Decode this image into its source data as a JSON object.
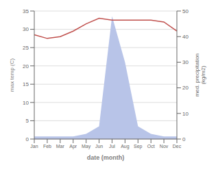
{
  "chart_data": {
    "type": "line",
    "xlabel": "date (month)",
    "ylabel": "max temp (C)",
    "y2label": "med. precipitation\n(kg/m2)",
    "categories": [
      "Jan",
      "Feb",
      "Mar",
      "Apr",
      "May",
      "Jun",
      "Jul",
      "Aug",
      "Sep",
      "Oct",
      "Nov",
      "Dec"
    ],
    "series": [
      {
        "type": "area",
        "axis": "y2",
        "color": "#b8c4e8",
        "values": [
          1,
          1,
          1,
          1,
          2,
          5,
          48,
          30,
          5,
          2,
          1,
          1
        ]
      },
      {
        "type": "line",
        "color": "#c0504d",
        "values": [
          28.5,
          27.5,
          28.0,
          29.5,
          31.5,
          33.0,
          32.5,
          32.5,
          32.5,
          32.5,
          32.0,
          29.5
        ]
      }
    ],
    "ylim": [
      0,
      35
    ],
    "yticks": [
      0,
      5,
      10,
      15,
      20,
      25,
      30,
      35
    ],
    "y2lim": [
      0,
      50
    ],
    "y2ticks": [
      0,
      10,
      20,
      30,
      40,
      50
    ],
    "grid": true
  }
}
